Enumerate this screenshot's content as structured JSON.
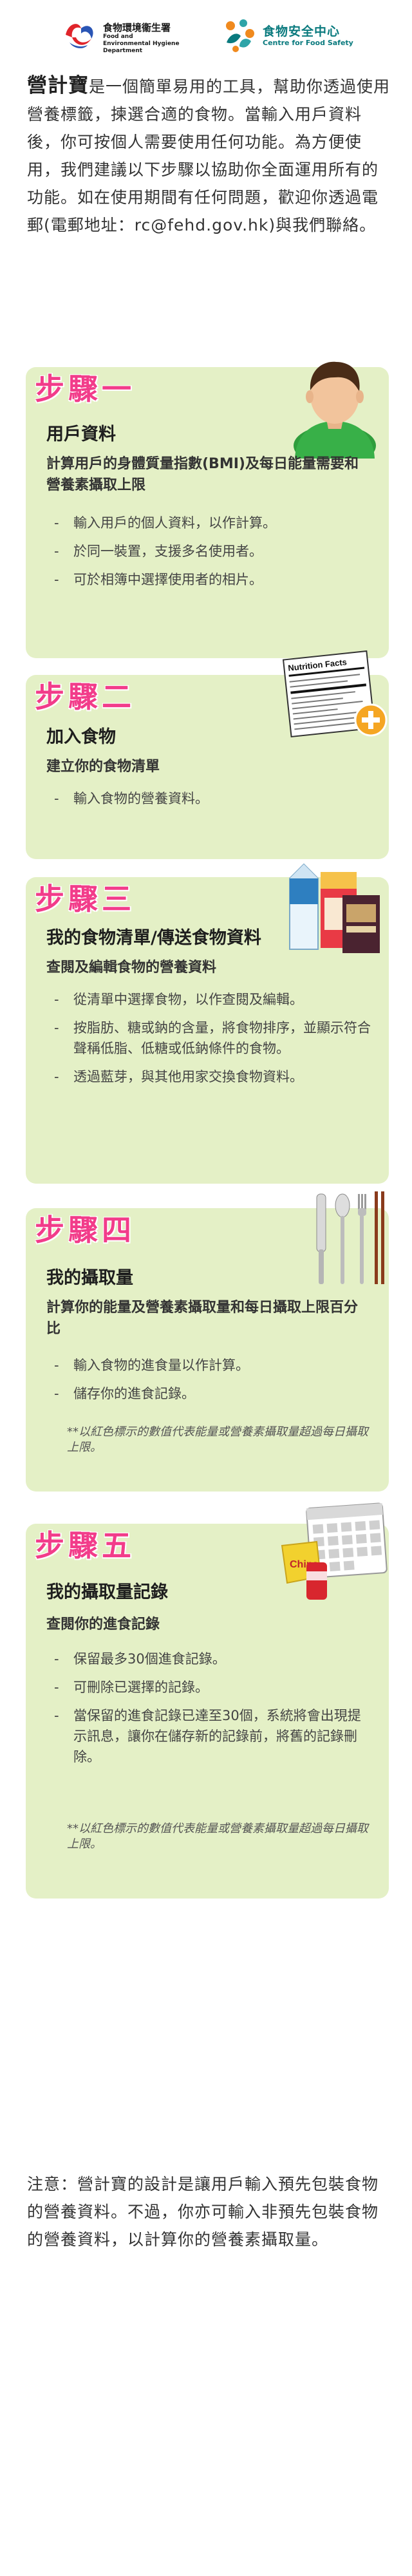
{
  "header": {
    "fehd_name_cn": "食物環境衞生署",
    "fehd_name_en": "Food and Environmental Hygiene Department",
    "cfs_name_cn": "食物安全中心",
    "cfs_name_en": "Centre for Food Safety"
  },
  "intro": {
    "brand": "營計寶",
    "text": "是一個簡單易用的工具，幫助你透過使用營養標籤，揀選合適的食物。當輸入用戶資料後，你可按個人需要使用任何功能。為方便使用，我們建議以下步驟以協助你全面運用所有的功能。如在使用期間有任何問題，歡迎你透過電郵(電郵地址：rc@fehd.gov.hk)與我們聯絡。"
  },
  "steps": [
    {
      "title": "步驟一",
      "heading": "用戶資料",
      "sub": "計算用戶的身體質量指數(BMI)及每日能量需要和營養素攝取上限",
      "bullets": [
        "輸入用戶的個人資料，以作計算。",
        "於同一裝置，支援多名使用者。",
        "可於相簿中選擇使用者的相片。"
      ],
      "icon": "user-icon"
    },
    {
      "title": "步驟二",
      "heading": "加入食物",
      "sub": "建立你的食物清單",
      "bullets": [
        "輸入食物的營養資料。"
      ],
      "icon": "nutrition-facts-add-icon"
    },
    {
      "title": "步驟三",
      "heading": "我的食物清單/傳送食物資料",
      "sub": "查閱及編輯食物的營養資料",
      "bullets": [
        "從清單中選擇食物，以作查閱及編輯。",
        "按脂肪、糖或鈉的含量，將食物排序，並顯示符合聲稱低脂、低糖或低鈉條件的食物。",
        "透過藍芽，與其他用家交換食物資料。"
      ],
      "icon": "food-packages-icon"
    },
    {
      "title": "步驟四",
      "heading": "我的攝取量",
      "sub": "計算你的能量及營養素攝取量和每日攝取上限百分比",
      "bullets": [
        "輸入食物的進食量以作計算。",
        "儲存你的進食記錄。"
      ],
      "note": "**以紅色標示的數值代表能量或營養素攝取量超過每日攝取上限。",
      "icon": "cutlery-icon"
    },
    {
      "title": "步驟五",
      "heading": "我的攝取量記錄",
      "sub": "查閱你的進食記錄",
      "bullets": [
        "保留最多30個進食記錄。",
        "可刪除已選擇的記錄。",
        "當保留的進食記錄已達至30個，系統將會出現提示訊息，讓你在儲存新的記錄前，將舊的記錄刪除。"
      ],
      "note": "**以紅色標示的數值代表能量或營養素攝取量超過每日攝取上限。",
      "icon": "calendar-snacks-icon"
    }
  ],
  "nutrition_label": {
    "title": "Nutrition Facts"
  },
  "snack_label": "Chips",
  "bullet_dash": "-",
  "footer": "注意：營計寶的設計是讓用戶輸入預先包裝食物的營養資料。不過，你亦可輸入非預先包裝食物的營養資料，以計算你的營養素攝取量。"
}
